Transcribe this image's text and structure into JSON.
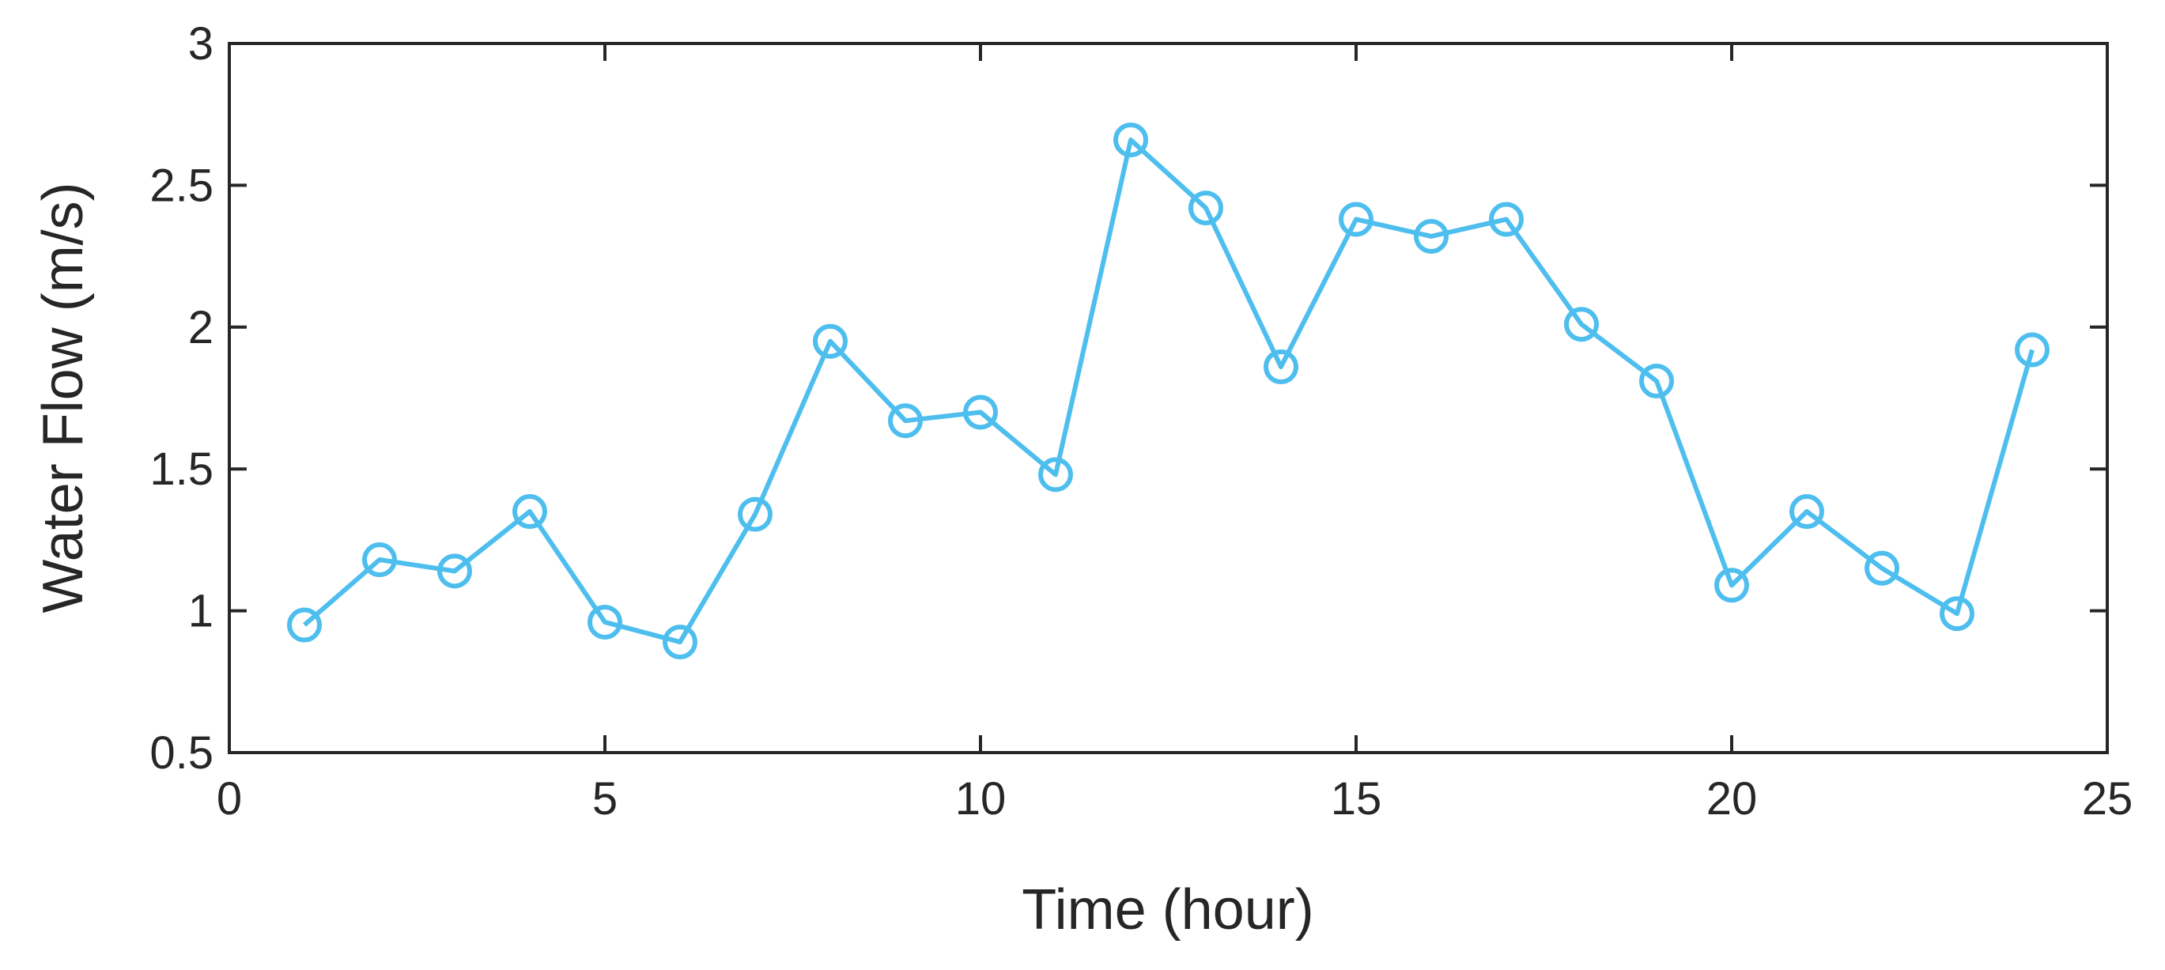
{
  "chart_data": {
    "type": "line",
    "xlabel": "Time (hour)",
    "ylabel": "Water Flow (m/s)",
    "xlim": [
      0,
      25
    ],
    "ylim": [
      0.5,
      3
    ],
    "xticks": [
      "0",
      "5",
      "10",
      "15",
      "20",
      "25"
    ],
    "yticks": [
      "0.5",
      "1",
      "1.5",
      "2",
      "2.5",
      "3"
    ],
    "grid": false,
    "marker": "circle",
    "series_color": "#4DBEEE",
    "series": [
      {
        "x": [
          1,
          2,
          3,
          4,
          5,
          6,
          7,
          8,
          9,
          10,
          11,
          12,
          13,
          14,
          15,
          16,
          17,
          18,
          19,
          20,
          21,
          22,
          23,
          24
        ],
        "values": [
          0.95,
          1.18,
          1.14,
          1.35,
          0.96,
          0.89,
          1.34,
          1.95,
          1.67,
          1.7,
          1.48,
          2.66,
          2.42,
          1.86,
          2.38,
          2.32,
          2.38,
          2.01,
          1.81,
          1.09,
          1.35,
          1.15,
          0.99,
          1.92
        ]
      }
    ]
  }
}
